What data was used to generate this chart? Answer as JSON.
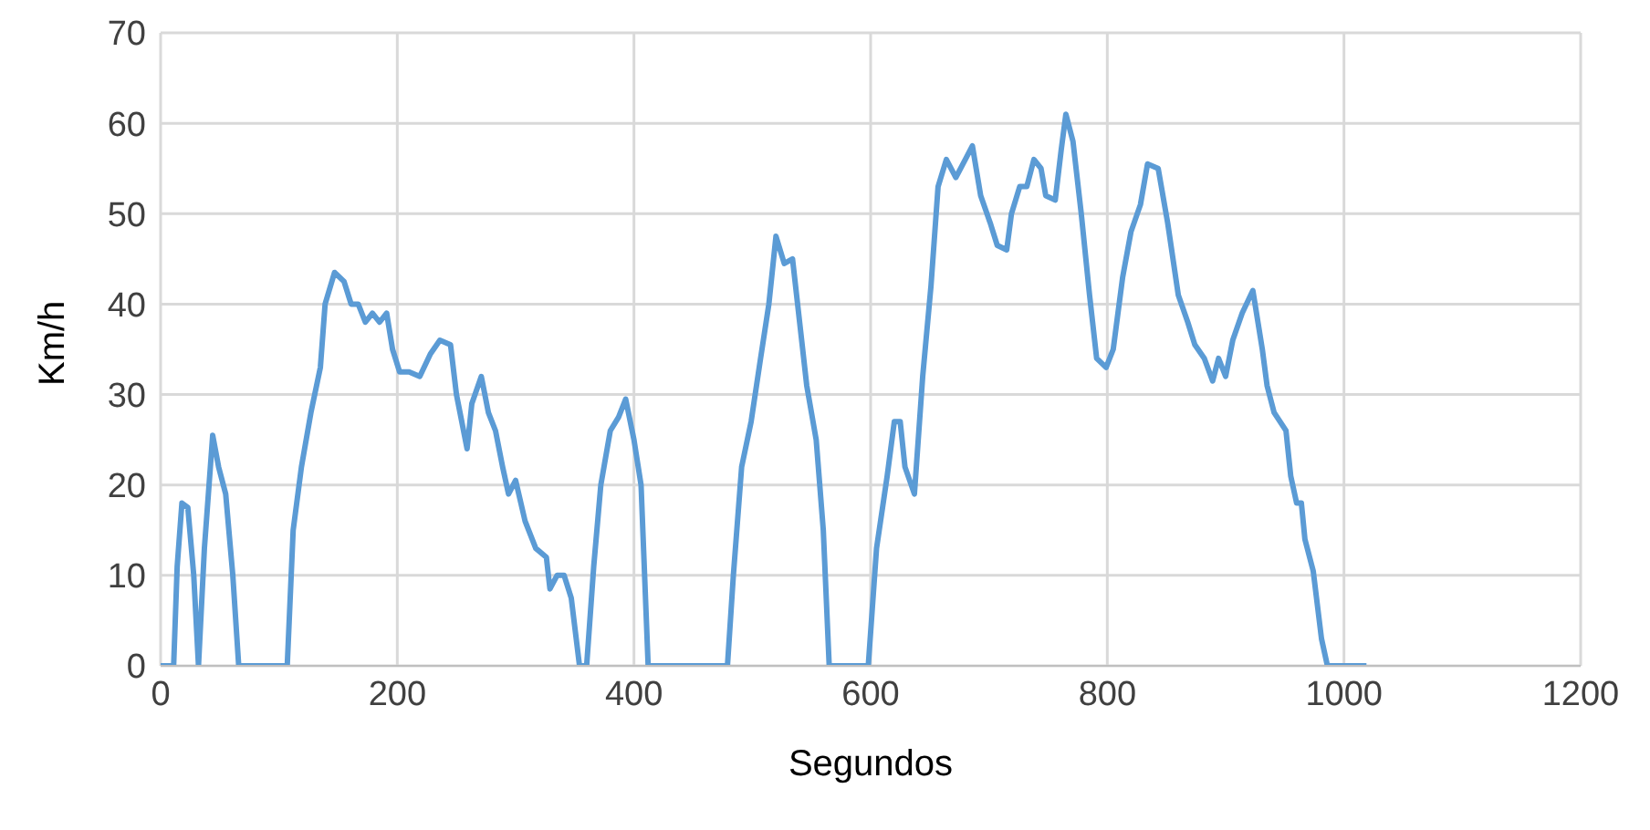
{
  "chart_data": {
    "type": "line",
    "xlabel": "Segundos",
    "ylabel": "Km/h",
    "x": [
      0,
      11,
      14,
      18,
      23,
      28,
      32,
      37,
      44,
      49,
      55,
      61,
      66,
      107,
      112,
      119,
      127,
      135,
      139,
      147,
      155,
      161,
      167,
      173,
      179,
      185,
      191,
      196,
      202,
      210,
      219,
      228,
      236,
      245,
      250,
      259,
      263,
      271,
      277,
      283,
      289,
      294,
      300,
      308,
      317,
      326,
      329,
      335,
      341,
      347,
      354,
      360,
      366,
      372,
      380,
      387,
      393,
      400,
      406,
      412,
      479,
      484,
      491,
      499,
      507,
      514,
      520,
      527,
      534,
      540,
      546,
      554,
      560,
      565,
      598,
      605,
      614,
      620,
      625,
      629,
      637,
      644,
      651,
      657,
      664,
      672,
      680,
      686,
      693,
      701,
      707,
      715,
      719,
      726,
      732,
      738,
      744,
      748,
      756,
      761,
      765,
      771,
      778,
      785,
      791,
      799,
      805,
      813,
      820,
      828,
      834,
      843,
      851,
      860,
      868,
      874,
      882,
      889,
      894,
      900,
      906,
      914,
      923,
      931,
      935,
      941,
      951,
      955,
      960,
      964,
      967,
      974,
      981,
      986,
      1019
    ],
    "series": [
      {
        "color": "#5b9bd5",
        "values": [
          0,
          0,
          11,
          18,
          17.5,
          10,
          0,
          13,
          25.5,
          22,
          19,
          10,
          0,
          0,
          15,
          22,
          28,
          33,
          40,
          43.5,
          42.5,
          40,
          40,
          38,
          39,
          38,
          39,
          35,
          32.5,
          32.5,
          32,
          34.5,
          36,
          35.5,
          30,
          24,
          29,
          32,
          28,
          26,
          22,
          19,
          20.5,
          16,
          13,
          12,
          8.5,
          10,
          10,
          7.5,
          0,
          0,
          11,
          20,
          26,
          27.5,
          29.5,
          25,
          20,
          0,
          0,
          10,
          22,
          27,
          34,
          40,
          47.5,
          44.5,
          45,
          38,
          31,
          25,
          15,
          0,
          0,
          13,
          21,
          27,
          27,
          22,
          19,
          32,
          42,
          53,
          56,
          54,
          56,
          57.5,
          52,
          49,
          46.5,
          46,
          50,
          53,
          53,
          56,
          55,
          52,
          51.5,
          57,
          61,
          58,
          50,
          41,
          34,
          33,
          35,
          43,
          48,
          51,
          55.5,
          55,
          49,
          41,
          38,
          35.5,
          34,
          31.5,
          34,
          32,
          36,
          39,
          41.5,
          35,
          31,
          28,
          26,
          21,
          18,
          18,
          14,
          10.5,
          3,
          0,
          0
        ]
      }
    ],
    "xlim": [
      0,
      1200
    ],
    "xticks": [
      0,
      200,
      400,
      600,
      800,
      1000,
      1200
    ],
    "ylim": [
      0,
      70
    ],
    "yticks": [
      0,
      10,
      20,
      30,
      40,
      50,
      60,
      70
    ],
    "grid": true,
    "legend": false,
    "marker": "none",
    "line_style": "solid"
  }
}
